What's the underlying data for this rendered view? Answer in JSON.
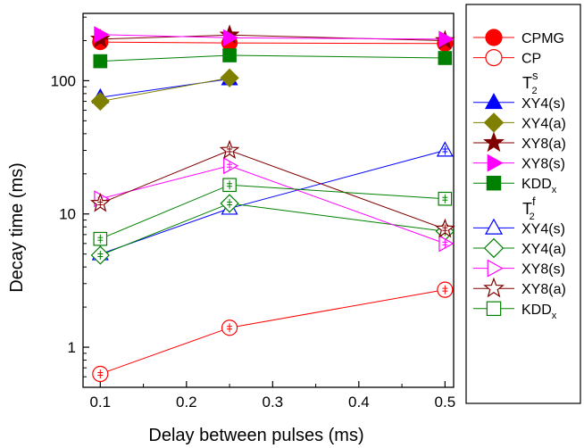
{
  "chart_data": {
    "type": "scatter",
    "xlabel": "Delay between pulses (ms)",
    "ylabel": "Decay time (ms)",
    "x_scale": "linear",
    "y_scale": "log",
    "xlim": [
      0.08,
      0.51
    ],
    "ylim": [
      0.5,
      320
    ],
    "x_ticks": [
      0.1,
      0.2,
      0.3,
      0.4,
      0.5
    ],
    "x_tick_labels": [
      "0.1",
      "0.2",
      "0.3",
      "0.4",
      "0.5"
    ],
    "y_ticks": [
      1,
      10,
      100
    ],
    "y_tick_labels": [
      "1",
      "10",
      "100"
    ],
    "legend_position": "right, outside plot",
    "legend_groups": [
      {
        "header": null,
        "series": [
          0,
          1
        ]
      },
      {
        "header": {
          "base": "T",
          "sup": "s",
          "sub": "2"
        },
        "series": [
          2,
          3,
          4,
          5,
          6
        ]
      },
      {
        "header": {
          "base": "T",
          "sup": "f",
          "sub": "2"
        },
        "series": [
          7,
          8,
          9,
          10,
          11
        ]
      }
    ],
    "series": [
      {
        "name": "CPMG",
        "label": "CPMG",
        "sub": "",
        "marker": "circle",
        "filled": true,
        "color": "#ff0000",
        "x": [
          0.1,
          0.25,
          0.5
        ],
        "y": [
          195,
          192,
          190
        ]
      },
      {
        "name": "CP",
        "label": "CP",
        "sub": "",
        "marker": "circle",
        "filled": false,
        "color": "#ff0000",
        "x": [
          0.1,
          0.25,
          0.5
        ],
        "y": [
          0.63,
          1.4,
          2.7
        ]
      },
      {
        "name": "XY4(s)",
        "label": "XY4(s)",
        "sub": "",
        "marker": "triangle",
        "filled": true,
        "color": "#0000ff",
        "x": [
          0.1,
          0.25
        ],
        "y": [
          75,
          103
        ]
      },
      {
        "name": "XY4(a)",
        "label": "XY4(a)",
        "sub": "",
        "marker": "diamond",
        "filled": true,
        "color": "#808000",
        "x": [
          0.1,
          0.25
        ],
        "y": [
          70,
          105
        ]
      },
      {
        "name": "XY8(a)",
        "label": "XY8(a)",
        "sub": "",
        "marker": "star",
        "filled": true,
        "color": "#800000",
        "x": [
          0.1,
          0.25,
          0.5
        ],
        "y": [
          205,
          220,
          200
        ]
      },
      {
        "name": "XY8(s)",
        "label": "XY8(s)",
        "sub": "",
        "marker": "right-triangle",
        "filled": true,
        "color": "#ff00ff",
        "x": [
          0.1,
          0.25,
          0.5
        ],
        "y": [
          222,
          210,
          205
        ]
      },
      {
        "name": "KDDx",
        "label": "KDD",
        "sub": "x",
        "marker": "square",
        "filled": true,
        "color": "#008000",
        "x": [
          0.1,
          0.25,
          0.5
        ],
        "y": [
          140,
          155,
          148
        ]
      },
      {
        "name": "XY4(s)",
        "label": "XY4(s)",
        "sub": "",
        "marker": "triangle",
        "filled": false,
        "color": "#0000ff",
        "x": [
          0.1,
          0.25,
          0.5
        ],
        "y": [
          5.0,
          11.0,
          30.0
        ]
      },
      {
        "name": "XY4(a)",
        "label": "XY4(a)",
        "sub": "",
        "marker": "diamond",
        "filled": false,
        "color": "#008000",
        "x": [
          0.1,
          0.25,
          0.5
        ],
        "y": [
          4.9,
          12.0,
          7.4
        ]
      },
      {
        "name": "XY8(s)",
        "label": "XY8(s)",
        "sub": "",
        "marker": "right-triangle",
        "filled": false,
        "color": "#ff00ff",
        "x": [
          0.1,
          0.25,
          0.5
        ],
        "y": [
          13.0,
          23.0,
          6.0
        ]
      },
      {
        "name": "XY8(a)",
        "label": "XY8(a)",
        "sub": "",
        "marker": "star",
        "filled": false,
        "color": "#800000",
        "x": [
          0.1,
          0.25,
          0.5
        ],
        "y": [
          12.0,
          30.0,
          7.7
        ]
      },
      {
        "name": "KDDx",
        "label": "KDD",
        "sub": "x",
        "marker": "square",
        "filled": false,
        "color": "#008000",
        "x": [
          0.1,
          0.25,
          0.5
        ],
        "y": [
          6.5,
          16.5,
          13.0
        ]
      }
    ]
  }
}
